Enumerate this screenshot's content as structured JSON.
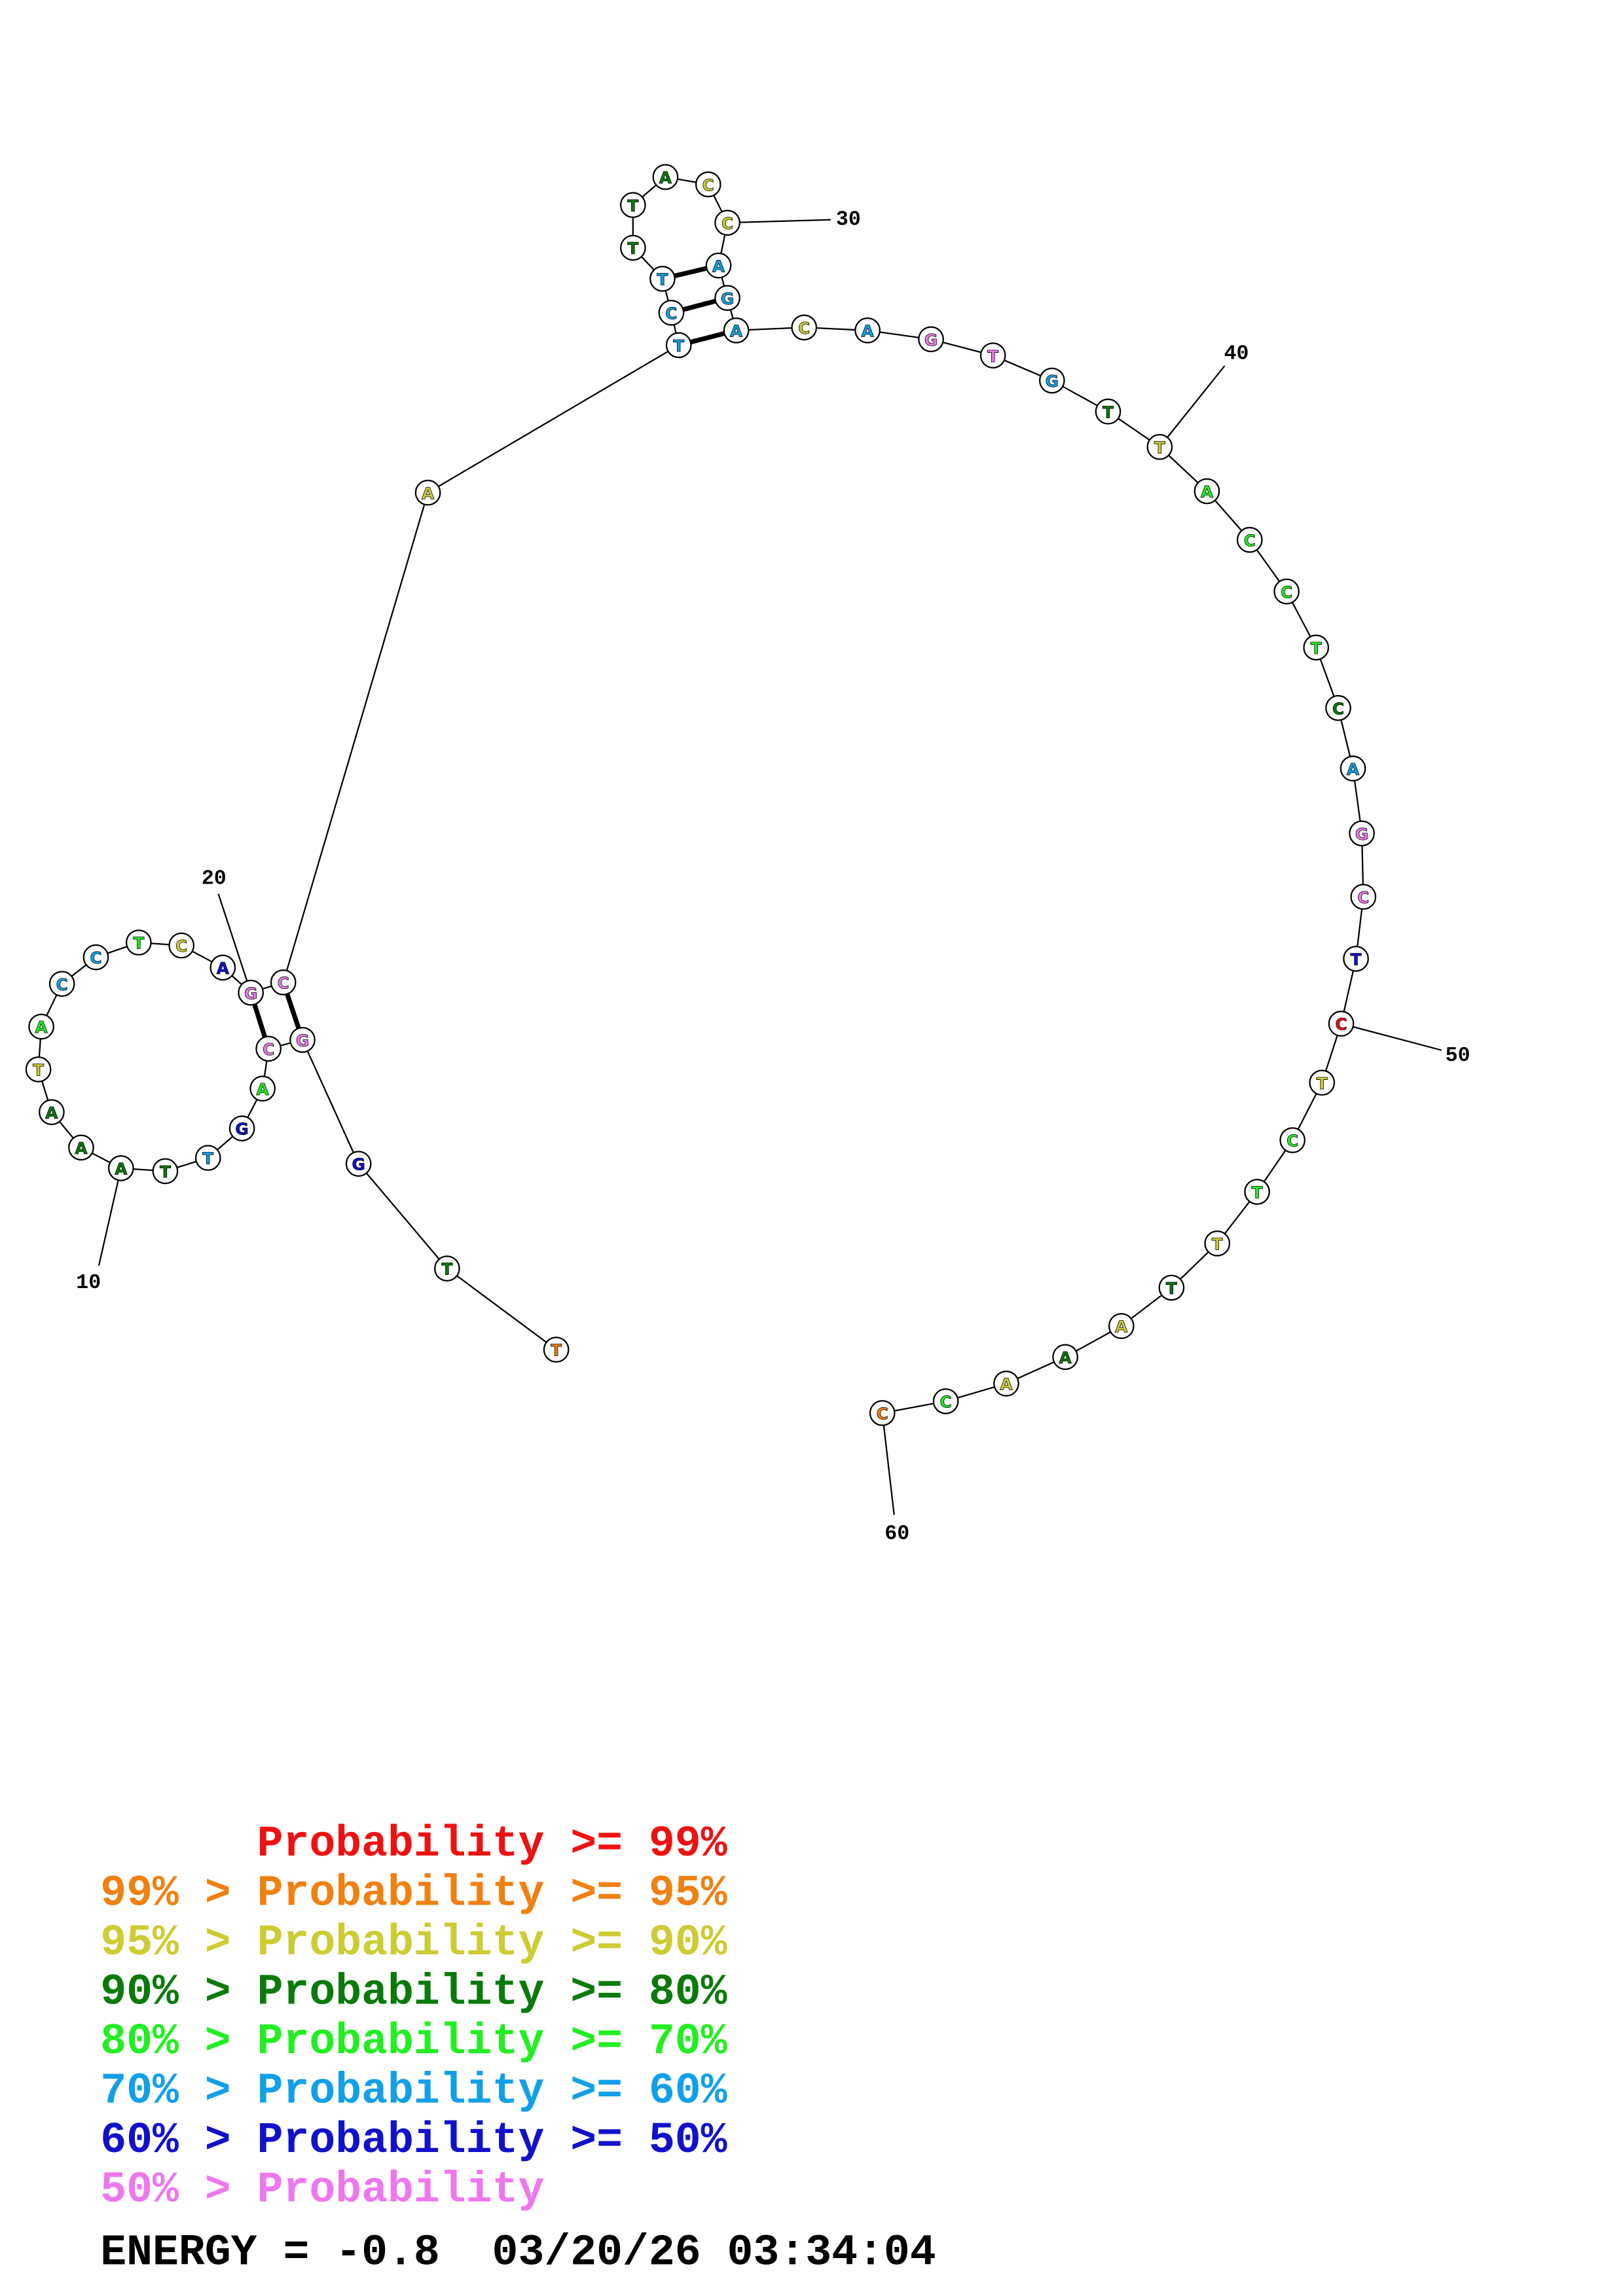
{
  "nodes": [
    {
      "base": "T",
      "color": "#f08010"
    },
    {
      "base": "T",
      "color": "#0a7a0a"
    },
    {
      "base": "G",
      "color": "#1111cc"
    },
    {
      "base": "G",
      "color": "#ee77ee"
    },
    {
      "base": "C",
      "color": "#ee77ee"
    },
    {
      "base": "A",
      "color": "#22ee22"
    },
    {
      "base": "G",
      "color": "#1111cc"
    },
    {
      "base": "T",
      "color": "#11a0e8"
    },
    {
      "base": "T",
      "color": "#0a7a0a"
    },
    {
      "base": "A",
      "color": "#0a7a0a"
    },
    {
      "base": "A",
      "color": "#0a7a0a"
    },
    {
      "base": "A",
      "color": "#0a7a0a"
    },
    {
      "base": "T",
      "color": "#cccc33"
    },
    {
      "base": "A",
      "color": "#22ee22"
    },
    {
      "base": "C",
      "color": "#11a0e8"
    },
    {
      "base": "C",
      "color": "#11a0e8"
    },
    {
      "base": "T",
      "color": "#22ee22"
    },
    {
      "base": "C",
      "color": "#cccc33"
    },
    {
      "base": "A",
      "color": "#1111cc"
    },
    {
      "base": "G",
      "color": "#ee77ee"
    },
    {
      "base": "C",
      "color": "#ee77ee"
    },
    {
      "base": "A",
      "color": "#cccc33"
    },
    {
      "base": "T",
      "color": "#11a0e8"
    },
    {
      "base": "C",
      "color": "#11a0e8"
    },
    {
      "base": "T",
      "color": "#11a0e8"
    },
    {
      "base": "T",
      "color": "#0a7a0a"
    },
    {
      "base": "T",
      "color": "#0a7a0a"
    },
    {
      "base": "A",
      "color": "#0a7a0a"
    },
    {
      "base": "C",
      "color": "#cccc33"
    },
    {
      "base": "C",
      "color": "#cccc33"
    },
    {
      "base": "A",
      "color": "#11a0e8"
    },
    {
      "base": "G",
      "color": "#11a0e8"
    },
    {
      "base": "A",
      "color": "#11a0e8"
    },
    {
      "base": "C",
      "color": "#cccc33"
    },
    {
      "base": "A",
      "color": "#11a0e8"
    },
    {
      "base": "G",
      "color": "#ee77ee"
    },
    {
      "base": "T",
      "color": "#ee77ee"
    },
    {
      "base": "G",
      "color": "#11a0e8"
    },
    {
      "base": "T",
      "color": "#0a7a0a"
    },
    {
      "base": "T",
      "color": "#cccc33"
    },
    {
      "base": "A",
      "color": "#22ee22"
    },
    {
      "base": "C",
      "color": "#22ee22"
    },
    {
      "base": "C",
      "color": "#22ee22"
    },
    {
      "base": "T",
      "color": "#22ee22"
    },
    {
      "base": "C",
      "color": "#0a7a0a"
    },
    {
      "base": "A",
      "color": "#11a0e8"
    },
    {
      "base": "G",
      "color": "#ee77ee"
    },
    {
      "base": "C",
      "color": "#ee77ee"
    },
    {
      "base": "T",
      "color": "#1111cc"
    },
    {
      "base": "C",
      "color": "#ee1111"
    },
    {
      "base": "T",
      "color": "#cccc33"
    },
    {
      "base": "C",
      "color": "#22ee22"
    },
    {
      "base": "T",
      "color": "#22ee22"
    },
    {
      "base": "T",
      "color": "#cccc33"
    },
    {
      "base": "T",
      "color": "#0a7a0a"
    },
    {
      "base": "A",
      "color": "#cccc33"
    },
    {
      "base": "A",
      "color": "#0a7a0a"
    },
    {
      "base": "A",
      "color": "#cccc33"
    },
    {
      "base": "C",
      "color": "#22ee22"
    },
    {
      "base": "C",
      "color": "#f08010"
    }
  ],
  "position_labels": [
    10,
    20,
    30,
    40,
    50,
    60
  ],
  "legend": [
    {
      "text": "Probability >= 99%",
      "color": "#ee1111"
    },
    {
      "text": "99% > Probability >= 95%",
      "color": "#f08010"
    },
    {
      "text": "95% > Probability >= 90%",
      "color": "#cccc33"
    },
    {
      "text": "90% > Probability >= 80%",
      "color": "#0a7a0a"
    },
    {
      "text": "80% > Probability >= 70%",
      "color": "#22ee22"
    },
    {
      "text": "70% > Probability >= 60%",
      "color": "#11a0e8"
    },
    {
      "text": "60% > Probability >= 50%",
      "color": "#1111cc"
    },
    {
      "text": "50% > Probability",
      "color": "#ee77ee"
    }
  ],
  "energy": "ENERGY = -0.8  03/20/26 03:34:04"
}
